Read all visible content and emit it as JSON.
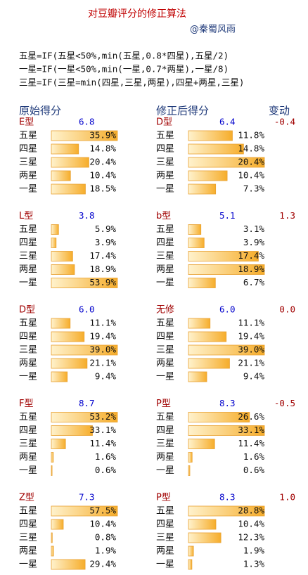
{
  "title": "对豆瓣评分的修正算法",
  "author": "@秦蜀风雨",
  "formulas": [
    "五星=IF(五星<50%,min(五星,0.8*四星),五星/2)",
    "一星=IF(一星<50%,min(一星,0.7*两星),一星/8)",
    "三星=IF(三星=min(四星,三星,两星),四星+两星,三星)"
  ],
  "headers": {
    "original": "原始得分",
    "corrected": "修正后得分",
    "change": "变动"
  },
  "star_labels": [
    "五星",
    "四星",
    "三星",
    "两星",
    "一星"
  ],
  "groups": [
    {
      "original": {
        "type": "E型",
        "score": "6.8",
        "values": [
          35.9,
          14.8,
          20.4,
          10.4,
          18.5
        ],
        "value_labels": [
          "35.9%",
          "14.8%",
          "20.4%",
          "10.4%",
          "18.5%"
        ]
      },
      "corrected": {
        "type": "D型",
        "score": "6.4",
        "change": "-0.4",
        "values": [
          11.8,
          14.8,
          20.4,
          10.4,
          7.3
        ],
        "value_labels": [
          "11.8%",
          "14.8%",
          "20.4%",
          "10.4%",
          "7.3%"
        ]
      }
    },
    {
      "original": {
        "type": "L型",
        "score": "3.8",
        "values": [
          5.9,
          3.9,
          17.4,
          18.9,
          53.9
        ],
        "value_labels": [
          "5.9%",
          "3.9%",
          "17.4%",
          "18.9%",
          "53.9%"
        ]
      },
      "corrected": {
        "type": "b型",
        "score": "5.1",
        "change": "1.3",
        "values": [
          3.1,
          3.9,
          17.4,
          18.9,
          6.7
        ],
        "value_labels": [
          "3.1%",
          "3.9%",
          "17.4%",
          "18.9%",
          "6.7%"
        ]
      }
    },
    {
      "original": {
        "type": "D型",
        "score": "6.0",
        "values": [
          11.1,
          19.4,
          39.0,
          21.1,
          9.4
        ],
        "value_labels": [
          "11.1%",
          "19.4%",
          "39.0%",
          "21.1%",
          "9.4%"
        ]
      },
      "corrected": {
        "type": "无修",
        "score": "6.0",
        "change": "0.0",
        "values": [
          11.1,
          19.4,
          39.0,
          21.1,
          9.4
        ],
        "value_labels": [
          "11.1%",
          "19.4%",
          "39.0%",
          "21.1%",
          "9.4%"
        ]
      }
    },
    {
      "original": {
        "type": "F型",
        "score": "8.7",
        "values": [
          53.2,
          33.1,
          11.4,
          1.6,
          0.6
        ],
        "value_labels": [
          "53.2%",
          "33.1%",
          "11.4%",
          "1.6%",
          "0.6%"
        ]
      },
      "corrected": {
        "type": "P型",
        "score": "8.3",
        "change": "-0.5",
        "values": [
          26.6,
          33.1,
          11.4,
          1.6,
          0.6
        ],
        "value_labels": [
          "26.6%",
          "33.1%",
          "11.4%",
          "1.6%",
          "0.6%"
        ]
      }
    },
    {
      "original": {
        "type": "Z型",
        "score": "7.3",
        "values": [
          57.5,
          10.4,
          0.8,
          1.9,
          29.4
        ],
        "value_labels": [
          "57.5%",
          "10.4%",
          "0.8%",
          "1.9%",
          "29.4%"
        ]
      },
      "corrected": {
        "type": "P型",
        "score": "8.3",
        "change": "1.0",
        "values": [
          28.8,
          10.4,
          12.3,
          1.9,
          1.3
        ],
        "value_labels": [
          "28.8%",
          "10.4%",
          "12.3%",
          "1.9%",
          "1.3%"
        ]
      }
    }
  ]
}
